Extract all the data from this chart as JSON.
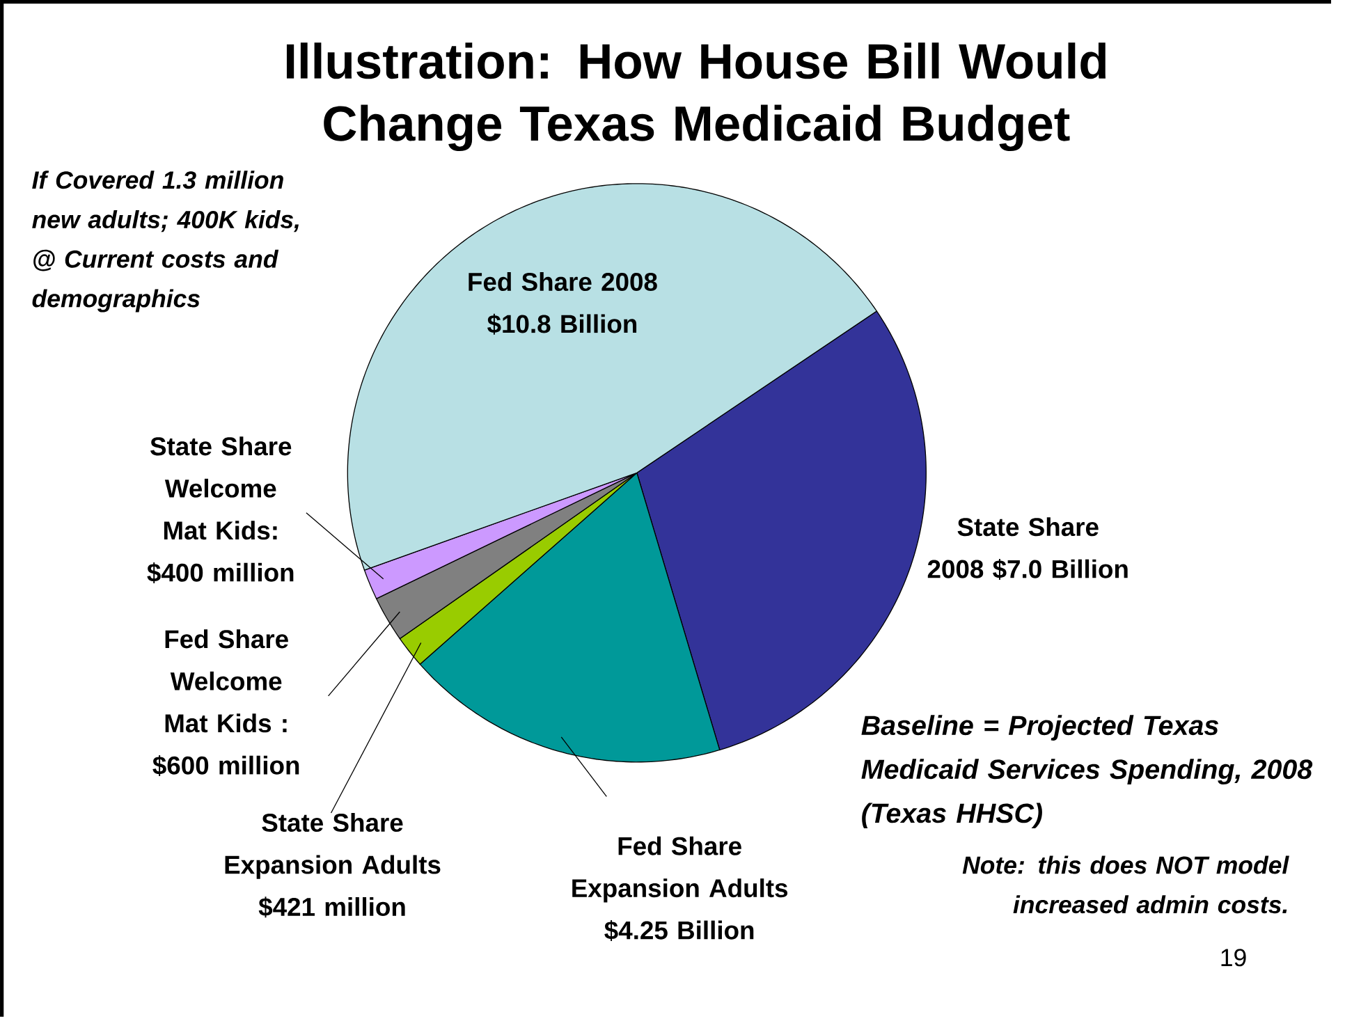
{
  "chart_data": {
    "type": "pie",
    "title": "Illustration: How House Bill Would Change Texas Medicaid Budget",
    "categories": [
      "State Share 2008 $7.0 Billion",
      "Fed Share Expansion Adults $4.25 Billion",
      "State Share Expansion Adults $421 million",
      "Fed Share Welcome Mat Kids : $600 million",
      "State Share Welcome Mat Kids: $400 million",
      "Fed Share 2008 $10.8 Billion"
    ],
    "values": [
      7000,
      4250,
      421,
      600,
      400,
      10800
    ],
    "colors": [
      "#333399",
      "#009999",
      "#99cc00",
      "#808080",
      "#cc99ff",
      "#b8e0e4"
    ],
    "annotations": [
      "If Covered 1.3 million new adults; 400K kids, @ Current costs and demographics",
      "Baseline = Projected Texas Medicaid Services Spending, 2008 (Texas HHSC)",
      "Note: this does NOT model increased admin costs.",
      "19"
    ]
  }
}
